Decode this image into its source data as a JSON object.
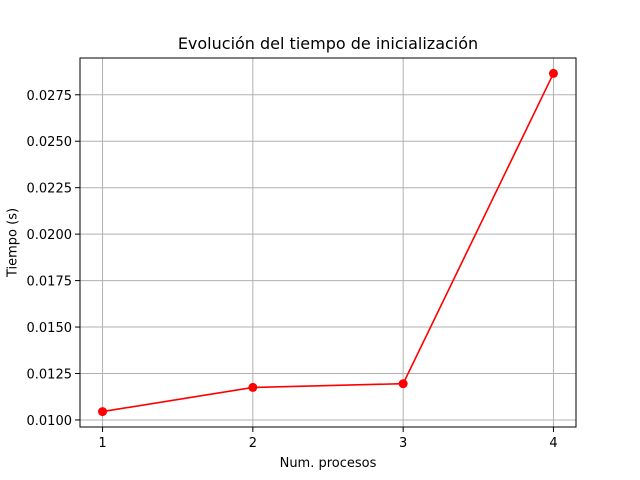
{
  "chart_data": {
    "type": "line",
    "title": "Evolución del tiempo de inicialización",
    "xlabel": "Num. procesos",
    "ylabel": "Tiempo (s)",
    "x": [
      1,
      2,
      3,
      4
    ],
    "series": [
      {
        "values": [
          0.01045,
          0.01175,
          0.01195,
          0.02865
        ],
        "color": "#ff0000",
        "marker": "circle"
      }
    ],
    "xticks": [
      1,
      2,
      3,
      4
    ],
    "xtick_labels": [
      "1",
      "2",
      "3",
      "4"
    ],
    "yticks": [
      0.01,
      0.0125,
      0.015,
      0.0175,
      0.02,
      0.0225,
      0.025,
      0.0275
    ],
    "ytick_labels": [
      "0.0100",
      "0.0125",
      "0.0150",
      "0.0175",
      "0.0200",
      "0.0225",
      "0.0250",
      "0.0275"
    ],
    "xlim": [
      0.85,
      4.15
    ],
    "ylim": [
      0.00962,
      0.02948
    ],
    "grid": true,
    "grid_color": "#b0b0b0"
  }
}
